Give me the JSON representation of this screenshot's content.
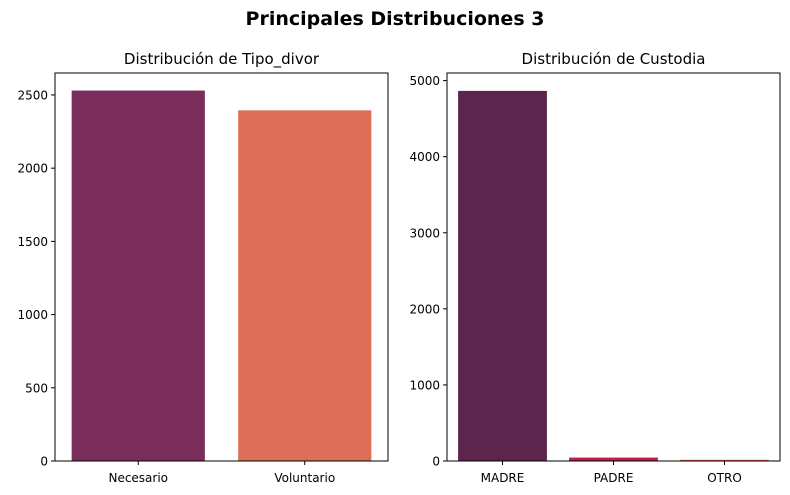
{
  "figure": {
    "suptitle": "Principales Distribuciones 3"
  },
  "chart_data": [
    {
      "type": "bar",
      "title": "Distribución de Tipo_divor",
      "xlabel": "",
      "ylabel": "",
      "categories": [
        "Necesario",
        "Voluntario"
      ],
      "values": [
        2530,
        2395
      ],
      "colors": [
        "#7a2c5a",
        "#dd6f58"
      ],
      "ylim": [
        0,
        2650
      ],
      "yticks": [
        0,
        500,
        1000,
        1500,
        2000,
        2500
      ],
      "grid": false
    },
    {
      "type": "bar",
      "title": "Distribución de Custodia",
      "xlabel": "",
      "ylabel": "",
      "categories": [
        "MADRE",
        "PADRE",
        "OTRO"
      ],
      "values": [
        4865,
        45,
        15
      ],
      "colors": [
        "#5b254d",
        "#b8234a",
        "#e34c3a"
      ],
      "ylim": [
        0,
        5100
      ],
      "yticks": [
        0,
        1000,
        2000,
        3000,
        4000,
        5000
      ],
      "grid": false
    }
  ]
}
